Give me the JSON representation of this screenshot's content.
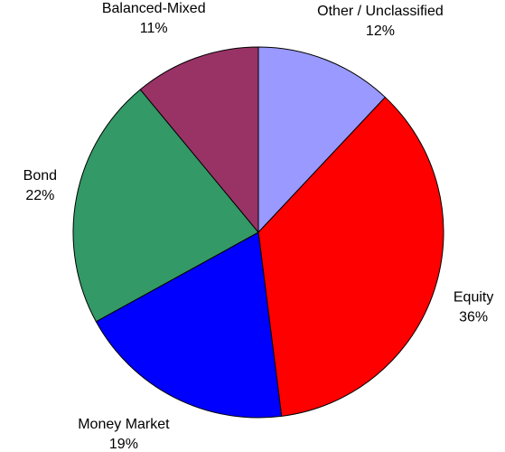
{
  "chart_data": {
    "type": "pie",
    "categories": [
      "Other / Unclassified",
      "Equity",
      "Money Market",
      "Bond",
      "Balanced-Mixed"
    ],
    "values": [
      12,
      36,
      19,
      22,
      11
    ],
    "value_labels": [
      "12%",
      "36%",
      "19%",
      "22%",
      "11%"
    ],
    "colors": [
      "#9999ff",
      "#ff0000",
      "#0000ff",
      "#339966",
      "#993366"
    ]
  }
}
